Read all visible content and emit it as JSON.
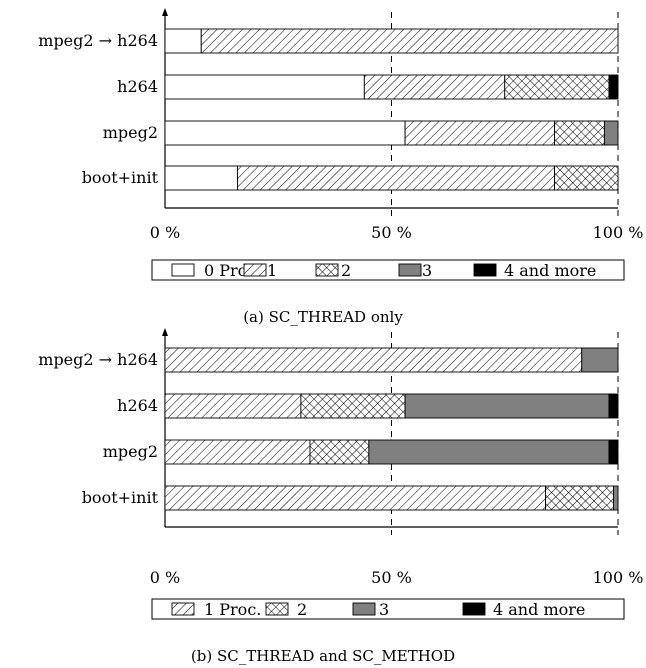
{
  "chart_data": [
    {
      "type": "bar",
      "orientation": "horizontal",
      "stacked": true,
      "caption": "(a) SC_THREAD only",
      "categories": [
        "mpeg2 → h264",
        "h264",
        "mpeg2",
        "boot+init"
      ],
      "xlim": [
        0,
        100
      ],
      "xticks": [
        "0 %",
        "50 %",
        "100 %"
      ],
      "gridlines": [
        50,
        100
      ],
      "legend_position": "bottom",
      "series": [
        {
          "name": "0 Proc.",
          "fill": "white",
          "values": [
            8,
            44,
            53,
            16
          ]
        },
        {
          "name": "1",
          "fill": "hatch-diagonal",
          "values": [
            92,
            31,
            33,
            70
          ]
        },
        {
          "name": "2",
          "fill": "crosshatch",
          "values": [
            0,
            23,
            11,
            14
          ]
        },
        {
          "name": "3",
          "fill": "gray",
          "values": [
            0,
            0,
            3,
            0
          ]
        },
        {
          "name": "4 and more",
          "fill": "black",
          "values": [
            0,
            2,
            0,
            0
          ]
        }
      ]
    },
    {
      "type": "bar",
      "orientation": "horizontal",
      "stacked": true,
      "caption": "(b) SC_THREAD and SC_METHOD",
      "categories": [
        "mpeg2 → h264",
        "h264",
        "mpeg2",
        "boot+init"
      ],
      "xlim": [
        0,
        100
      ],
      "xticks": [
        "0 %",
        "50 %",
        "100 %"
      ],
      "gridlines": [
        50,
        100
      ],
      "legend_position": "bottom",
      "series": [
        {
          "name": "1 Proc.",
          "fill": "hatch-diagonal",
          "values": [
            92,
            30,
            32,
            84
          ]
        },
        {
          "name": "2",
          "fill": "crosshatch",
          "values": [
            0,
            23,
            13,
            15
          ]
        },
        {
          "name": "3",
          "fill": "gray",
          "values": [
            8,
            45,
            53,
            1
          ]
        },
        {
          "name": "4 and more",
          "fill": "black",
          "values": [
            0,
            2,
            2,
            0
          ]
        }
      ]
    }
  ]
}
